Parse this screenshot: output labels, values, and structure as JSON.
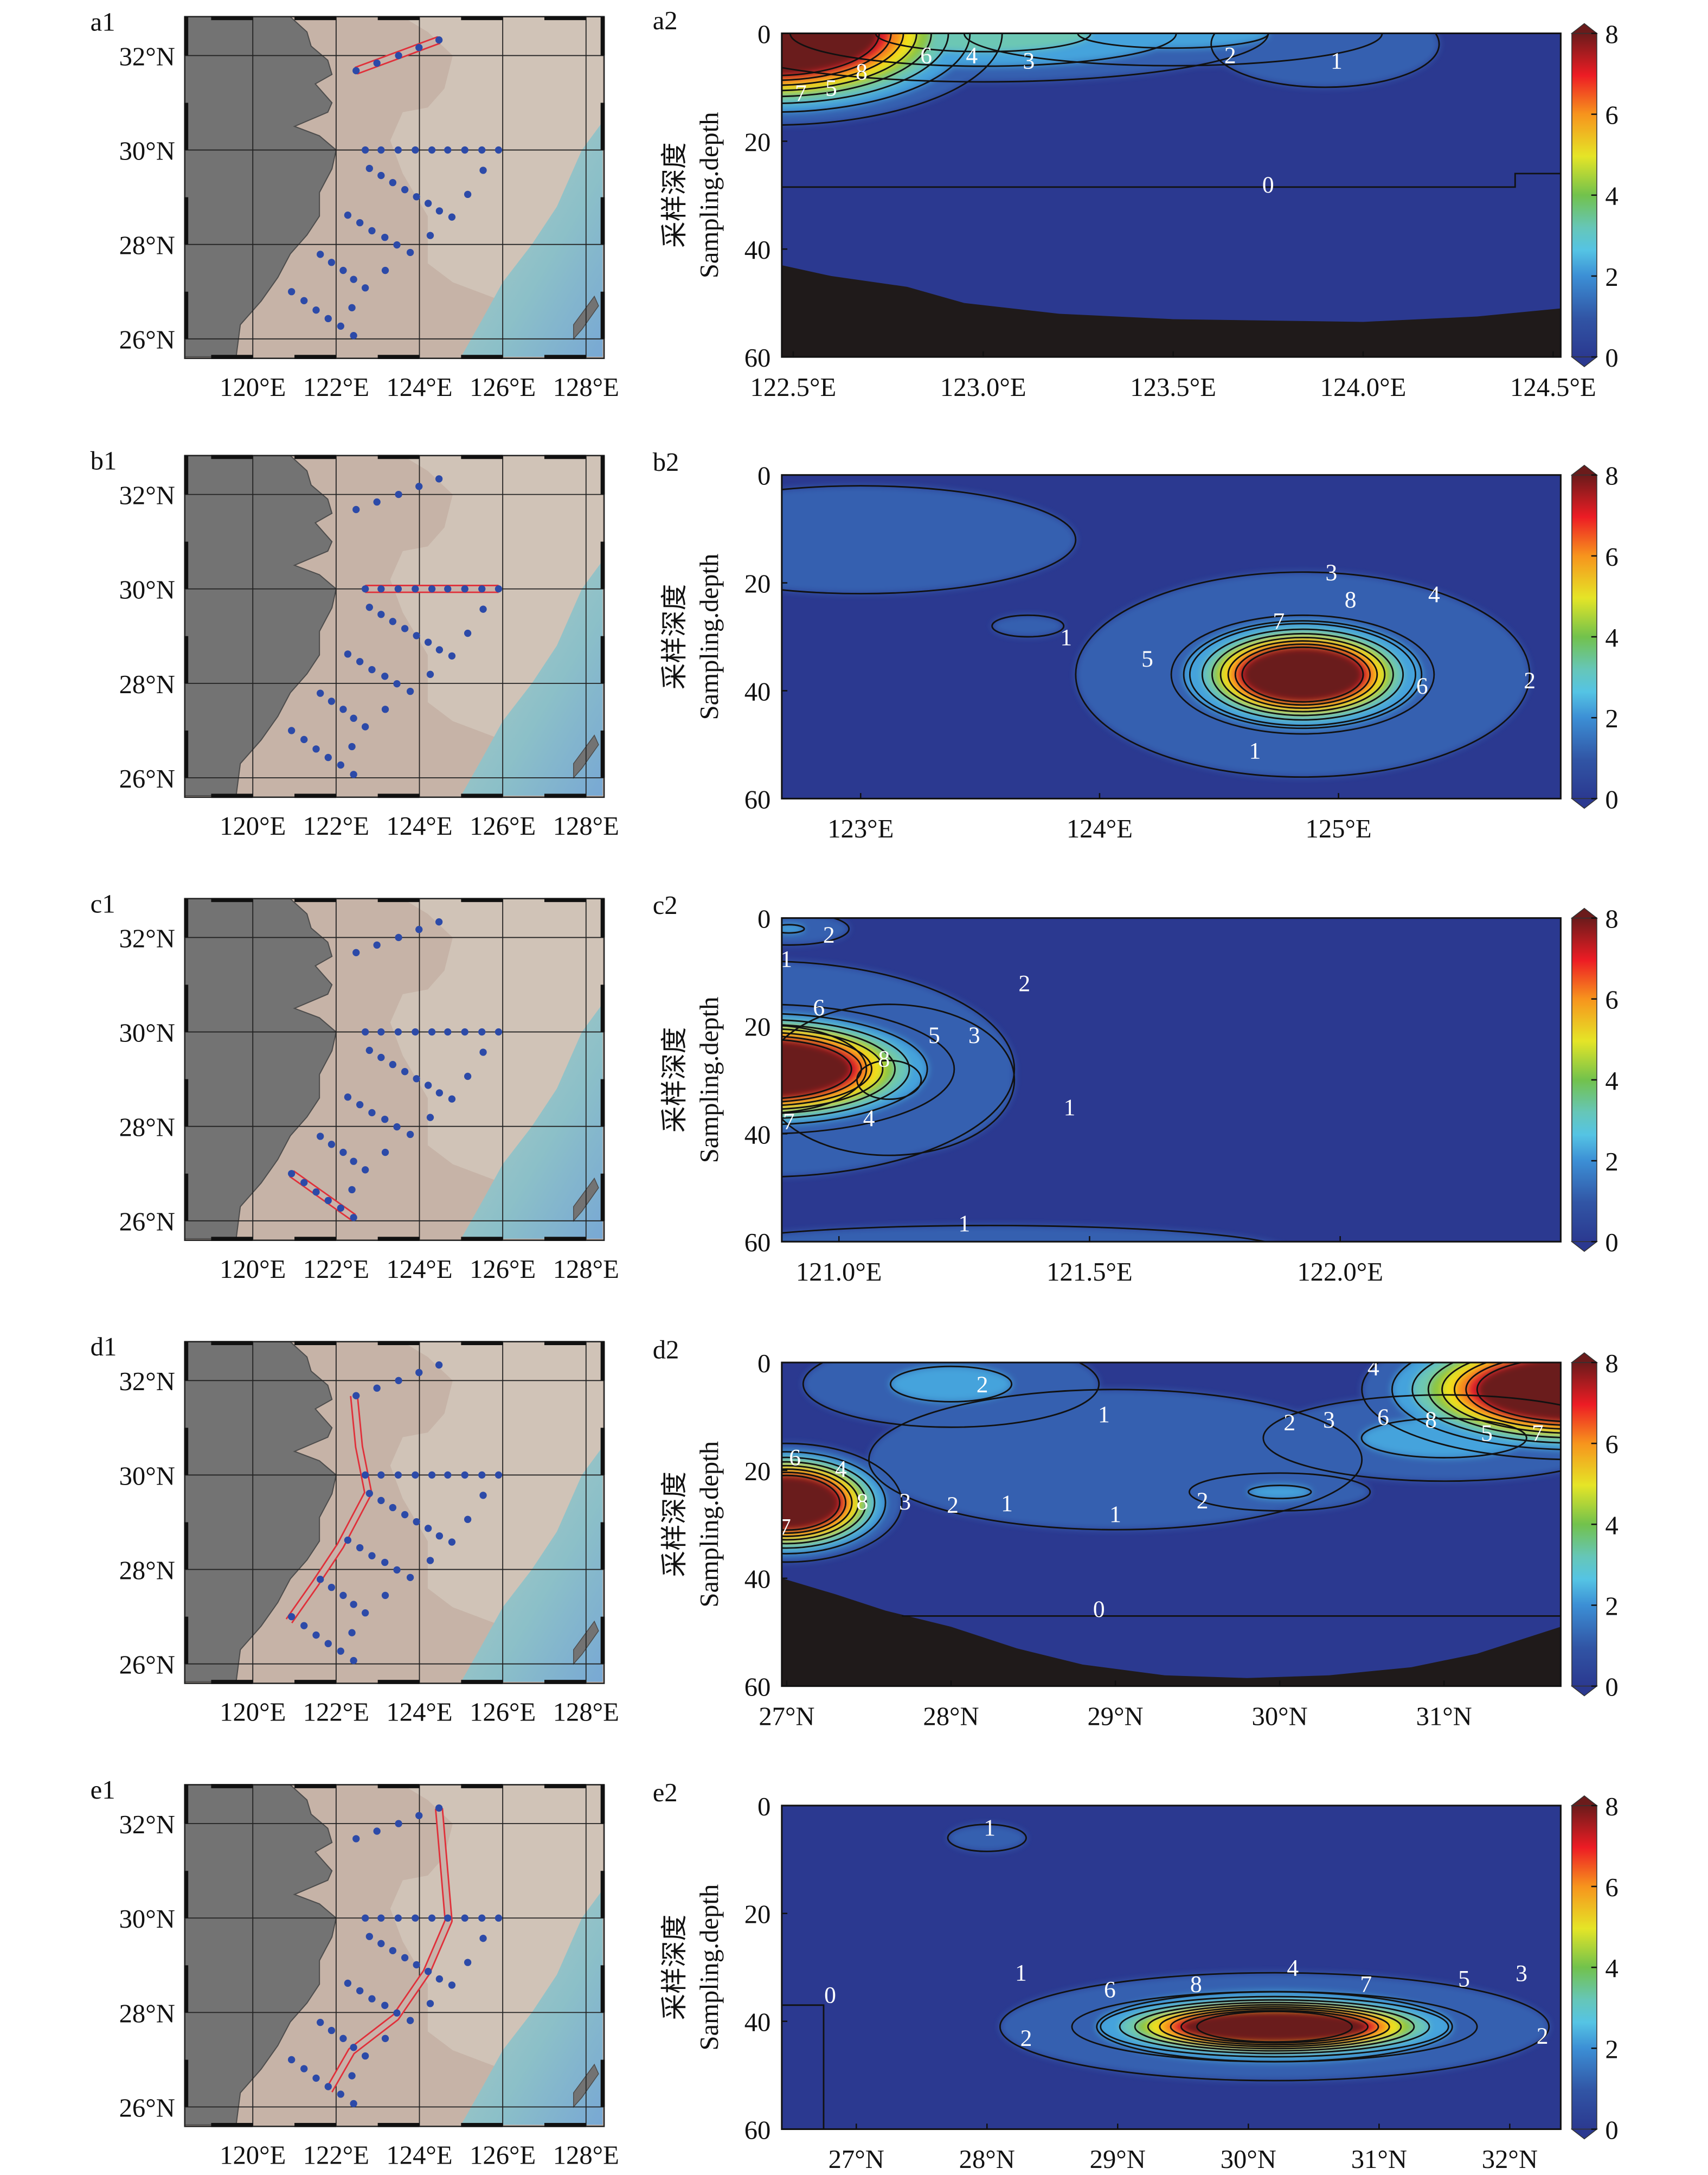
{
  "map": {
    "lat_ticks": [
      "32°N",
      "30°N",
      "28°N",
      "26°N"
    ],
    "lat_values": [
      32,
      30,
      28,
      26
    ],
    "lon_ticks": [
      "120°E",
      "122°E",
      "124°E",
      "126°E",
      "128°E"
    ],
    "lon_values": [
      120,
      122,
      124,
      126,
      128
    ],
    "stations": [
      [
        122.48,
        31.68
      ],
      [
        122.98,
        31.84
      ],
      [
        123.5,
        32.0
      ],
      [
        123.99,
        32.17
      ],
      [
        124.47,
        32.33
      ],
      [
        122.7,
        30
      ],
      [
        123.08,
        30
      ],
      [
        123.49,
        30
      ],
      [
        123.9,
        30
      ],
      [
        124.3,
        30
      ],
      [
        124.68,
        30
      ],
      [
        125.09,
        30
      ],
      [
        125.5,
        30
      ],
      [
        125.9,
        30
      ],
      [
        122.8,
        29.61
      ],
      [
        123.08,
        29.46
      ],
      [
        123.36,
        29.31
      ],
      [
        123.65,
        29.16
      ],
      [
        123.93,
        29.01
      ],
      [
        124.21,
        28.87
      ],
      [
        124.48,
        28.71
      ],
      [
        124.78,
        28.58
      ],
      [
        125.53,
        29.57
      ],
      [
        125.16,
        29.06
      ],
      [
        124.26,
        28.19
      ],
      [
        122.28,
        28.62
      ],
      [
        122.57,
        28.46
      ],
      [
        122.86,
        28.29
      ],
      [
        123.17,
        28.15
      ],
      [
        123.46,
        27.99
      ],
      [
        123.78,
        27.83
      ],
      [
        123.18,
        27.45
      ],
      [
        121.62,
        27.79
      ],
      [
        121.89,
        27.62
      ],
      [
        122.17,
        27.45
      ],
      [
        122.42,
        27.26
      ],
      [
        122.7,
        27.08
      ],
      [
        122.38,
        26.66
      ],
      [
        120.93,
        27.0
      ],
      [
        121.23,
        26.81
      ],
      [
        121.52,
        26.61
      ],
      [
        121.81,
        26.43
      ],
      [
        122.11,
        26.27
      ],
      [
        122.42,
        26.07
      ]
    ]
  },
  "yaxis": {
    "label_cn": "采样深度",
    "label_en": "Sampling.depth",
    "ticks": [
      "0",
      "20",
      "40",
      "60"
    ],
    "values": [
      0,
      20,
      40,
      60
    ]
  },
  "colorbar": {
    "ticks": [
      "0",
      "2",
      "4",
      "6",
      "8"
    ],
    "values": [
      0,
      2,
      4,
      6,
      8
    ],
    "range": [
      0,
      8
    ]
  },
  "chart_data": [
    {
      "type": "heatmap",
      "map_label": "a1",
      "label": "a2",
      "xrange": [
        122.47,
        124.52
      ],
      "ylim": [
        0,
        60
      ],
      "xticks": [
        "122.5°E",
        "123.0°E",
        "123.5°E",
        "124.0°E",
        "124.5°E"
      ],
      "xvalues": [
        122.5,
        123.0,
        123.5,
        124.0,
        124.5
      ],
      "track": [
        [
          122.48,
          31.68
        ],
        [
          124.47,
          32.33
        ]
      ],
      "contour_labels": [
        "7",
        "5",
        "8",
        "6",
        "4",
        "3",
        "2",
        "1",
        "0"
      ]
    },
    {
      "type": "heatmap",
      "map_label": "b1",
      "label": "b2",
      "xrange": [
        122.67,
        125.93
      ],
      "ylim": [
        0,
        60
      ],
      "xticks": [
        "123°E",
        "124°E",
        "125°E"
      ],
      "xvalues": [
        123,
        124,
        125
      ],
      "track": [
        [
          122.7,
          30
        ],
        [
          125.9,
          30
        ]
      ],
      "contour_labels": [
        "3",
        "8",
        "7",
        "4",
        "5",
        "6",
        "2",
        "1",
        "1"
      ]
    },
    {
      "type": "heatmap",
      "map_label": "c1",
      "label": "c2",
      "xrange": [
        120.886,
        122.44
      ],
      "ylim": [
        0,
        60
      ],
      "xticks": [
        "121.0°E",
        "121.5°E",
        "122.0°E"
      ],
      "xvalues": [
        121.0,
        121.5,
        122.0
      ],
      "track": [
        [
          120.93,
          27.0
        ],
        [
          122.42,
          26.07
        ]
      ],
      "contour_labels": [
        "2",
        "1",
        "6",
        "2",
        "5",
        "3",
        "8",
        "1",
        "7",
        "4",
        "1"
      ]
    },
    {
      "type": "heatmap",
      "map_label": "d1",
      "label": "d2",
      "xrange": [
        26.97,
        31.71
      ],
      "ylim": [
        0,
        60
      ],
      "xticks": [
        "27°N",
        "28°N",
        "29°N",
        "30°N",
        "31°N"
      ],
      "xvalues": [
        27,
        28,
        29,
        30,
        31
      ],
      "track": [
        [
          122.43,
          31.68
        ],
        [
          122.55,
          30.6
        ],
        [
          122.77,
          29.62
        ],
        [
          122.1,
          28.5
        ],
        [
          121.5,
          27.7
        ],
        [
          120.87,
          26.91
        ]
      ],
      "contour_labels": [
        "2",
        "1",
        "1",
        "2",
        "0",
        "6",
        "4",
        "8",
        "3",
        "2",
        "1",
        "7",
        "4",
        "2",
        "3",
        "6",
        "8",
        "5",
        "7"
      ]
    },
    {
      "type": "heatmap",
      "map_label": "e1",
      "label": "e2",
      "xrange": [
        26.43,
        32.39
      ],
      "ylim": [
        0,
        60
      ],
      "xticks": [
        "27°N",
        "28°N",
        "29°N",
        "30°N",
        "31°N",
        "32°N"
      ],
      "xvalues": [
        27,
        28,
        29,
        30,
        31,
        32
      ],
      "track": [
        [
          124.47,
          32.32
        ],
        [
          124.7,
          29.94
        ],
        [
          124.17,
          28.85
        ],
        [
          123.43,
          27.9
        ],
        [
          122.37,
          27.18
        ],
        [
          121.83,
          26.35
        ]
      ],
      "contour_labels": [
        "1",
        "0",
        "1",
        "6",
        "8",
        "4",
        "7",
        "5",
        "3",
        "2",
        "2"
      ]
    }
  ],
  "colors": {
    "station": "#2c4aa8",
    "track": "#e0303a",
    "land": "#737373",
    "seafloor": "#1f1a1a",
    "low": "#2b3990",
    "high": "#6b1b1b"
  }
}
